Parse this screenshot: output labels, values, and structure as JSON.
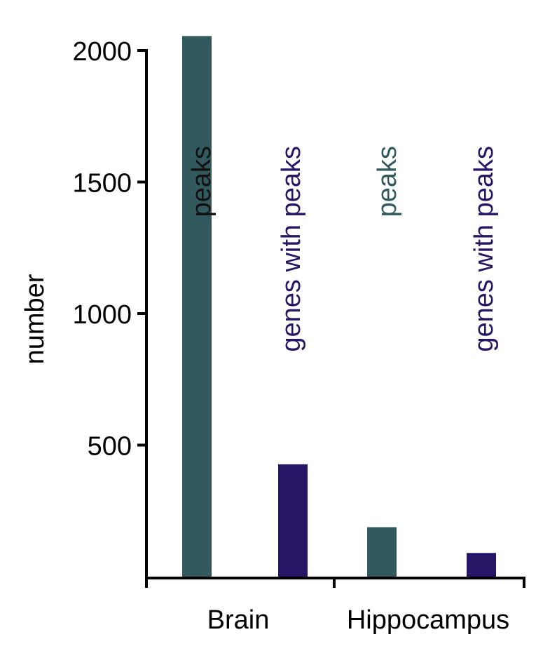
{
  "chart_data": {
    "type": "bar",
    "ylabel": "number",
    "ylim": [
      0,
      2000
    ],
    "yticks": [
      500,
      1000,
      1500,
      2000
    ],
    "groups": [
      {
        "name": "Brain",
        "bars": [
          {
            "label": "peaks",
            "value": 2055,
            "color": "#325a5e",
            "label_color": "#111111"
          },
          {
            "label": "genes with peaks",
            "value": 427,
            "color": "#271566",
            "label_color": "#271566"
          }
        ]
      },
      {
        "name": "Hippocampus",
        "bars": [
          {
            "label": "peaks",
            "value": 188,
            "color": "#325a5e",
            "label_color": "#325a5e"
          },
          {
            "label": "genes with peaks",
            "value": 90,
            "color": "#271566",
            "label_color": "#271566"
          }
        ]
      }
    ]
  }
}
